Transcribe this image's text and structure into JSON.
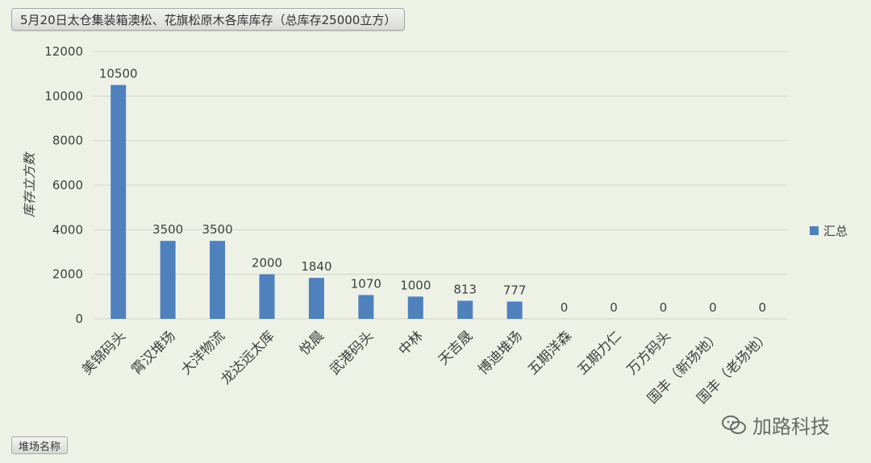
{
  "header": {
    "title": "5月20日太仓集装箱澳松、花旗松原木各库库存（总库存25000立方）"
  },
  "footer": {
    "field_button": "堆场名称",
    "watermark_text": "加路科技"
  },
  "chart_data": {
    "type": "bar",
    "title": "5月20日太仓集装箱澳松、花旗松原木各库库存（总库存25000立方）",
    "ylabel": "库存立方数",
    "xlabel": "",
    "ylim": [
      0,
      12000
    ],
    "yticks": [
      0,
      2000,
      4000,
      6000,
      8000,
      10000,
      12000
    ],
    "grid": true,
    "legend_position": "right",
    "categories": [
      "美锦码头",
      "霄汉堆场",
      "大洋物流",
      "龙达远太库",
      "悦晨",
      "武港码头",
      "中林",
      "天吉晟",
      "博迪堆场",
      "五期洋森",
      "五期力仁",
      "万方码头",
      "国丰（新场地）",
      "国丰（老场地）"
    ],
    "series": [
      {
        "name": "汇总",
        "color": "#4f81bd",
        "values": [
          10500,
          3500,
          3500,
          2000,
          1840,
          1070,
          1000,
          813,
          777,
          0,
          0,
          0,
          0,
          0
        ]
      }
    ]
  }
}
